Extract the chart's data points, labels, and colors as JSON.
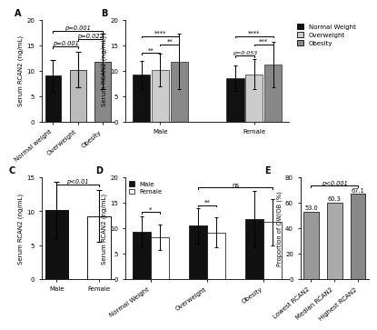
{
  "panel_A": {
    "categories": [
      "Normal weight",
      "Overweight",
      "Obesity"
    ],
    "values": [
      9.0,
      10.2,
      11.8
    ],
    "errors": [
      3.2,
      3.5,
      5.5
    ],
    "colors": [
      "#111111",
      "#bbbbbb",
      "#888888"
    ],
    "ylabel": "Serum RCAN2 (ng/mL)",
    "ylim": [
      0,
      20
    ],
    "yticks": [
      0,
      5,
      10,
      15,
      20
    ]
  },
  "panel_B": {
    "categories": [
      "Normal Weight",
      "Overweight",
      "Obesity"
    ],
    "values_male": [
      9.2,
      10.2,
      11.8
    ],
    "errors_male": [
      2.8,
      3.2,
      5.5
    ],
    "values_female": [
      8.5,
      9.3,
      11.2
    ],
    "errors_female": [
      2.5,
      3.0,
      4.5
    ],
    "colors": [
      "#111111",
      "#cccccc",
      "#888888"
    ],
    "ylabel": "Serum RCAN2 (ng/mL)",
    "ylim": [
      0,
      20
    ],
    "yticks": [
      0,
      5,
      10,
      15,
      20
    ],
    "legend": [
      "Normal Weight",
      "Overweight",
      "Obesity"
    ]
  },
  "panel_C": {
    "categories": [
      "Male",
      "Female"
    ],
    "values": [
      10.2,
      9.3
    ],
    "errors": [
      4.2,
      3.8
    ],
    "colors": [
      "#111111",
      "#ffffff"
    ],
    "edge_colors": [
      "#111111",
      "#111111"
    ],
    "ylabel": "Serum RCAN2 (ng/mL)",
    "ylim": [
      0,
      15
    ],
    "yticks": [
      0,
      5,
      10,
      15
    ]
  },
  "panel_D": {
    "categories": [
      "Normal Weight",
      "Overweight",
      "Obesity"
    ],
    "values_male": [
      9.3,
      10.5,
      11.8
    ],
    "errors_male": [
      3.0,
      3.5,
      5.5
    ],
    "values_female": [
      8.2,
      9.2,
      11.2
    ],
    "errors_female": [
      2.5,
      3.0,
      4.5
    ],
    "colors_male": "#111111",
    "colors_female": "#ffffff",
    "ylabel": "Serum RCAN2 (ng/mL)",
    "ylim": [
      0,
      20
    ],
    "yticks": [
      0,
      5,
      10,
      15,
      20
    ],
    "legend": [
      "Male",
      "Female"
    ]
  },
  "panel_E": {
    "categories": [
      "Lowest RCAN2",
      "Median RCAN2",
      "Highest RCAN2"
    ],
    "values": [
      53.0,
      60.3,
      67.1
    ],
    "colors": [
      "#999999",
      "#aaaaaa",
      "#888888"
    ],
    "ylabel": "Proportion of OW/OB (%)",
    "ylim": [
      0,
      80
    ],
    "yticks": [
      0,
      20,
      40,
      60,
      80
    ],
    "value_labels": [
      "53.0",
      "60.3",
      "67.1"
    ]
  }
}
